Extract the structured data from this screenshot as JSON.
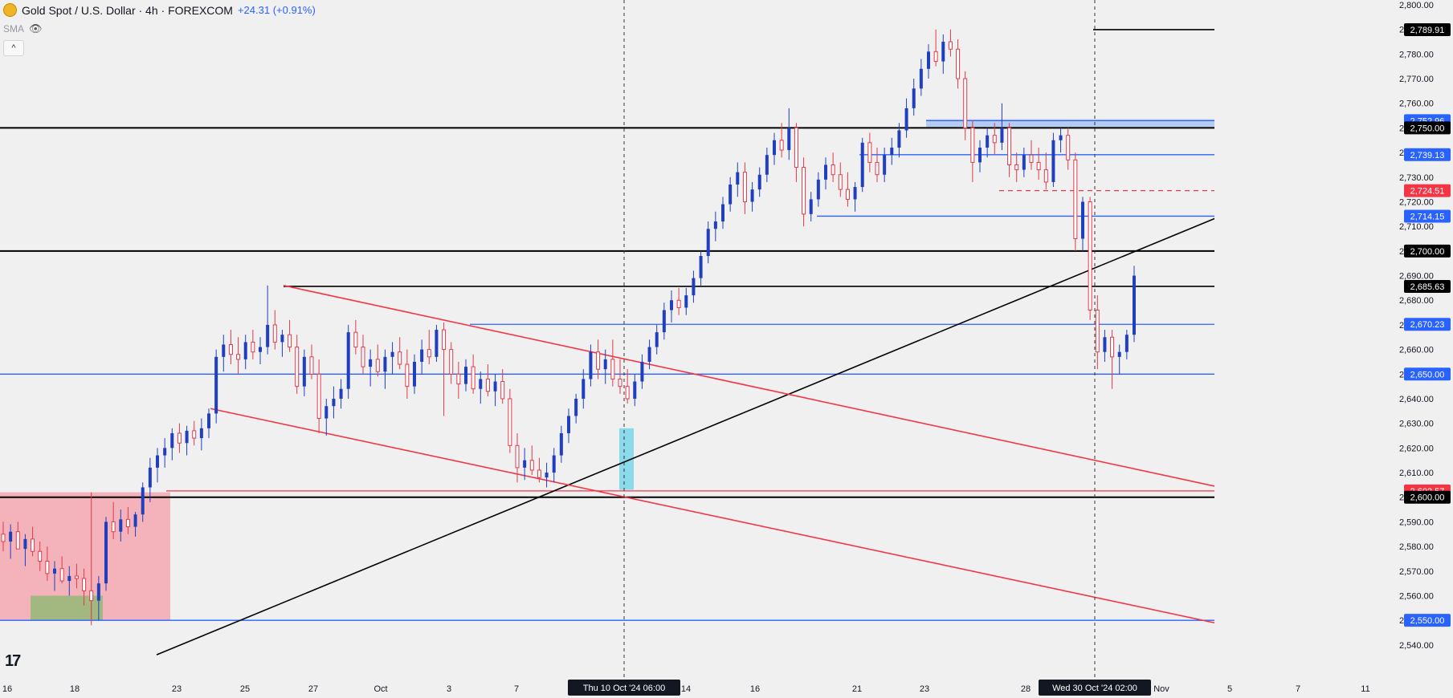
{
  "header": {
    "symbol_title": "Gold Spot / U.S. Dollar · 4h · FOREXCOM",
    "change": "+24.31 (+0.91%)",
    "indicator": "SMA",
    "collapse_glyph": "^",
    "logo_text": "17"
  },
  "colors": {
    "background": "#f0f0f0",
    "up": "#1f3fbf",
    "down": "#e03a4a",
    "blue_line": "#2962ff",
    "red_line": "#f23645",
    "black_line": "#000000"
  },
  "chart_data": {
    "type": "candlestick",
    "ylim": [
      2534,
      2800
    ],
    "y_ticks": [
      "2,540.00",
      "2,550.00",
      "2,560.00",
      "2,570.00",
      "2,580.00",
      "2,590.00",
      "2,600.00",
      "2,610.00",
      "2,620.00",
      "2,630.00",
      "2,640.00",
      "2,650.00",
      "2,660.00",
      "2,670.00",
      "2,680.00",
      "2,690.00",
      "2,700.00",
      "2,710.00",
      "2,720.00",
      "2,730.00",
      "2,740.00",
      "2,750.00",
      "2,760.00",
      "2,770.00",
      "2,780.00",
      "2,790.00",
      "2,800.00"
    ],
    "x_ticks": [
      "16",
      "18",
      "23",
      "25",
      "27",
      "Oct",
      "3",
      "7",
      "14",
      "16",
      "21",
      "23",
      "28",
      "Nov",
      "5",
      "7",
      "11"
    ],
    "crosshair_labels": [
      {
        "text": "Thu 10 Oct '24   06:00"
      },
      {
        "text": "Wed 30 Oct '24   02:00"
      }
    ],
    "horizontal_levels": [
      {
        "value": 2789.91,
        "label": "2,789.91",
        "style": "black"
      },
      {
        "value": 2752.96,
        "label": "2,752.96",
        "style": "blue"
      },
      {
        "value": 2750.0,
        "label": "2,750.00",
        "style": "black"
      },
      {
        "value": 2739.13,
        "label": "2,739.13",
        "style": "blue"
      },
      {
        "value": 2724.51,
        "label": "2,724.51",
        "style": "red"
      },
      {
        "value": 2714.15,
        "label": "2,714.15",
        "style": "blue"
      },
      {
        "value": 2700.0,
        "label": "2,700.00",
        "style": "black"
      },
      {
        "value": 2685.63,
        "label": "2,685.63",
        "style": "black"
      },
      {
        "value": 2670.23,
        "label": "2,670.23",
        "style": "blue"
      },
      {
        "value": 2650.0,
        "label": "2,650.00",
        "style": "blue"
      },
      {
        "value": 2602.57,
        "label": "2,602.57",
        "style": "red"
      },
      {
        "value": 2600.0,
        "label": "2,600.00",
        "style": "black"
      },
      {
        "value": 2550.0,
        "label": "2,550.00",
        "style": "blue"
      }
    ],
    "candles_ohlc": [
      [
        2585,
        2590,
        2578,
        2582
      ],
      [
        2582,
        2589,
        2575,
        2586
      ],
      [
        2586,
        2590,
        2580,
        2579
      ],
      [
        2579,
        2585,
        2572,
        2583
      ],
      [
        2583,
        2588,
        2576,
        2578
      ],
      [
        2578,
        2582,
        2570,
        2574
      ],
      [
        2574,
        2580,
        2566,
        2569
      ],
      [
        2569,
        2574,
        2562,
        2571
      ],
      [
        2571,
        2576,
        2565,
        2566
      ],
      [
        2566,
        2572,
        2560,
        2568
      ],
      [
        2568,
        2573,
        2563,
        2567
      ],
      [
        2567,
        2571,
        2556,
        2562
      ],
      [
        2562,
        2602,
        2548,
        2558
      ],
      [
        2558,
        2568,
        2550,
        2565
      ],
      [
        2565,
        2592,
        2562,
        2590
      ],
      [
        2590,
        2598,
        2583,
        2586
      ],
      [
        2586,
        2595,
        2582,
        2591
      ],
      [
        2591,
        2596,
        2585,
        2588
      ],
      [
        2588,
        2594,
        2584,
        2593
      ],
      [
        2593,
        2606,
        2590,
        2604
      ],
      [
        2604,
        2616,
        2598,
        2612
      ],
      [
        2612,
        2620,
        2606,
        2617
      ],
      [
        2617,
        2624,
        2612,
        2620
      ],
      [
        2620,
        2628,
        2615,
        2626
      ],
      [
        2626,
        2630,
        2618,
        2622
      ],
      [
        2622,
        2629,
        2617,
        2627
      ],
      [
        2627,
        2631,
        2621,
        2624
      ],
      [
        2624,
        2632,
        2619,
        2628
      ],
      [
        2628,
        2636,
        2624,
        2634
      ],
      [
        2634,
        2660,
        2630,
        2657
      ],
      [
        2657,
        2666,
        2651,
        2662
      ],
      [
        2662,
        2668,
        2654,
        2658
      ],
      [
        2658,
        2665,
        2650,
        2656
      ],
      [
        2656,
        2666,
        2652,
        2663
      ],
      [
        2663,
        2668,
        2656,
        2659
      ],
      [
        2659,
        2665,
        2654,
        2661
      ],
      [
        2661,
        2686,
        2658,
        2670
      ],
      [
        2670,
        2676,
        2660,
        2663
      ],
      [
        2663,
        2668,
        2657,
        2666
      ],
      [
        2666,
        2672,
        2659,
        2661
      ],
      [
        2661,
        2666,
        2642,
        2645
      ],
      [
        2645,
        2660,
        2641,
        2657
      ],
      [
        2657,
        2662,
        2648,
        2650
      ],
      [
        2650,
        2656,
        2626,
        2632
      ],
      [
        2632,
        2640,
        2625,
        2637
      ],
      [
        2637,
        2645,
        2632,
        2640
      ],
      [
        2640,
        2648,
        2636,
        2644
      ],
      [
        2644,
        2670,
        2640,
        2667
      ],
      [
        2667,
        2672,
        2658,
        2661
      ],
      [
        2661,
        2666,
        2650,
        2653
      ],
      [
        2653,
        2660,
        2645,
        2656
      ],
      [
        2656,
        2662,
        2649,
        2651
      ],
      [
        2651,
        2660,
        2644,
        2657
      ],
      [
        2657,
        2663,
        2650,
        2659
      ],
      [
        2659,
        2665,
        2652,
        2654
      ],
      [
        2654,
        2660,
        2640,
        2645
      ],
      [
        2645,
        2658,
        2642,
        2655
      ],
      [
        2655,
        2664,
        2650,
        2660
      ],
      [
        2660,
        2668,
        2654,
        2657
      ],
      [
        2657,
        2670,
        2655,
        2668
      ],
      [
        2668,
        2671,
        2633,
        2660
      ],
      [
        2660,
        2663,
        2646,
        2650
      ],
      [
        2650,
        2655,
        2640,
        2646
      ],
      [
        2646,
        2656,
        2643,
        2653
      ],
      [
        2653,
        2658,
        2642,
        2644
      ],
      [
        2644,
        2651,
        2638,
        2648
      ],
      [
        2648,
        2654,
        2641,
        2643
      ],
      [
        2643,
        2650,
        2637,
        2647
      ],
      [
        2647,
        2652,
        2638,
        2640
      ],
      [
        2640,
        2644,
        2618,
        2621
      ],
      [
        2621,
        2626,
        2606,
        2612
      ],
      [
        2612,
        2620,
        2607,
        2615
      ],
      [
        2615,
        2621,
        2609,
        2611
      ],
      [
        2611,
        2616,
        2606,
        2608
      ],
      [
        2608,
        2614,
        2604,
        2610
      ],
      [
        2610,
        2620,
        2606,
        2617
      ],
      [
        2617,
        2629,
        2614,
        2626
      ],
      [
        2626,
        2636,
        2622,
        2633
      ],
      [
        2633,
        2642,
        2630,
        2640
      ],
      [
        2640,
        2652,
        2636,
        2648
      ],
      [
        2648,
        2662,
        2645,
        2659
      ],
      [
        2659,
        2664,
        2648,
        2652
      ],
      [
        2652,
        2660,
        2646,
        2656
      ],
      [
        2656,
        2664,
        2645,
        2648
      ],
      [
        2648,
        2656,
        2642,
        2645
      ],
      [
        2645,
        2652,
        2638,
        2640
      ],
      [
        2640,
        2650,
        2637,
        2647
      ],
      [
        2647,
        2658,
        2644,
        2655
      ],
      [
        2655,
        2664,
        2652,
        2661
      ],
      [
        2661,
        2670,
        2658,
        2667
      ],
      [
        2667,
        2679,
        2664,
        2676
      ],
      [
        2676,
        2684,
        2671,
        2680
      ],
      [
        2680,
        2685,
        2674,
        2677
      ],
      [
        2677,
        2685,
        2674,
        2682
      ],
      [
        2682,
        2692,
        2679,
        2689
      ],
      [
        2689,
        2700,
        2686,
        2698
      ],
      [
        2698,
        2712,
        2695,
        2709
      ],
      [
        2709,
        2716,
        2704,
        2712
      ],
      [
        2712,
        2722,
        2709,
        2719
      ],
      [
        2719,
        2730,
        2716,
        2727
      ],
      [
        2727,
        2736,
        2722,
        2732
      ],
      [
        2732,
        2736,
        2715,
        2720
      ],
      [
        2720,
        2728,
        2716,
        2725
      ],
      [
        2725,
        2734,
        2722,
        2731
      ],
      [
        2731,
        2742,
        2728,
        2739
      ],
      [
        2739,
        2748,
        2735,
        2745
      ],
      [
        2745,
        2752,
        2738,
        2741
      ],
      [
        2741,
        2758,
        2737,
        2750
      ],
      [
        2750,
        2752,
        2728,
        2734
      ],
      [
        2734,
        2738,
        2710,
        2715
      ],
      [
        2715,
        2724,
        2712,
        2721
      ],
      [
        2721,
        2732,
        2718,
        2729
      ],
      [
        2729,
        2738,
        2725,
        2735
      ],
      [
        2735,
        2740,
        2728,
        2731
      ],
      [
        2731,
        2736,
        2722,
        2725
      ],
      [
        2725,
        2732,
        2718,
        2721
      ],
      [
        2721,
        2728,
        2716,
        2726
      ],
      [
        2726,
        2746,
        2724,
        2744
      ],
      [
        2744,
        2748,
        2732,
        2736
      ],
      [
        2736,
        2742,
        2728,
        2731
      ],
      [
        2731,
        2742,
        2728,
        2739
      ],
      [
        2739,
        2746,
        2735,
        2742
      ],
      [
        2742,
        2752,
        2738,
        2749
      ],
      [
        2749,
        2762,
        2746,
        2758
      ],
      [
        2758,
        2770,
        2755,
        2766
      ],
      [
        2766,
        2778,
        2763,
        2774
      ],
      [
        2774,
        2784,
        2770,
        2781
      ],
      [
        2781,
        2790,
        2775,
        2777
      ],
      [
        2777,
        2788,
        2772,
        2785
      ],
      [
        2785,
        2790,
        2779,
        2782
      ],
      [
        2782,
        2786,
        2766,
        2770
      ],
      [
        2770,
        2773,
        2745,
        2750
      ],
      [
        2750,
        2753,
        2728,
        2736
      ],
      [
        2736,
        2745,
        2732,
        2742
      ],
      [
        2742,
        2750,
        2738,
        2747
      ],
      [
        2747,
        2752,
        2739,
        2744
      ],
      [
        2744,
        2760,
        2741,
        2750
      ],
      [
        2750,
        2752,
        2730,
        2735
      ],
      [
        2735,
        2740,
        2728,
        2733
      ],
      [
        2733,
        2742,
        2730,
        2739
      ],
      [
        2739,
        2745,
        2733,
        2736
      ],
      [
        2736,
        2742,
        2729,
        2733
      ],
      [
        2733,
        2740,
        2725,
        2728
      ],
      [
        2728,
        2748,
        2726,
        2745
      ],
      [
        2745,
        2750,
        2740,
        2747
      ],
      [
        2747,
        2750,
        2733,
        2737
      ],
      [
        2737,
        2740,
        2700,
        2705
      ],
      [
        2705,
        2722,
        2700,
        2720
      ],
      [
        2720,
        2722,
        2672,
        2676
      ],
      [
        2676,
        2682,
        2652,
        2659
      ],
      [
        2659,
        2668,
        2655,
        2665
      ],
      [
        2665,
        2668,
        2644,
        2657
      ],
      [
        2657,
        2662,
        2650,
        2659
      ],
      [
        2659,
        2668,
        2656,
        2666
      ],
      [
        2666,
        2694,
        2663,
        2690
      ]
    ],
    "candle_x_range": [
      4,
      1412
    ],
    "trendlines": [
      {
        "color": "black",
        "from": [
          "2540"
        ],
        "to": [
          "2714"
        ]
      },
      {
        "color": "red",
        "from": [
          "2686"
        ],
        "to": [
          "2604"
        ]
      },
      {
        "color": "red",
        "from": [
          "2636"
        ],
        "to": [
          "2550"
        ]
      }
    ]
  }
}
